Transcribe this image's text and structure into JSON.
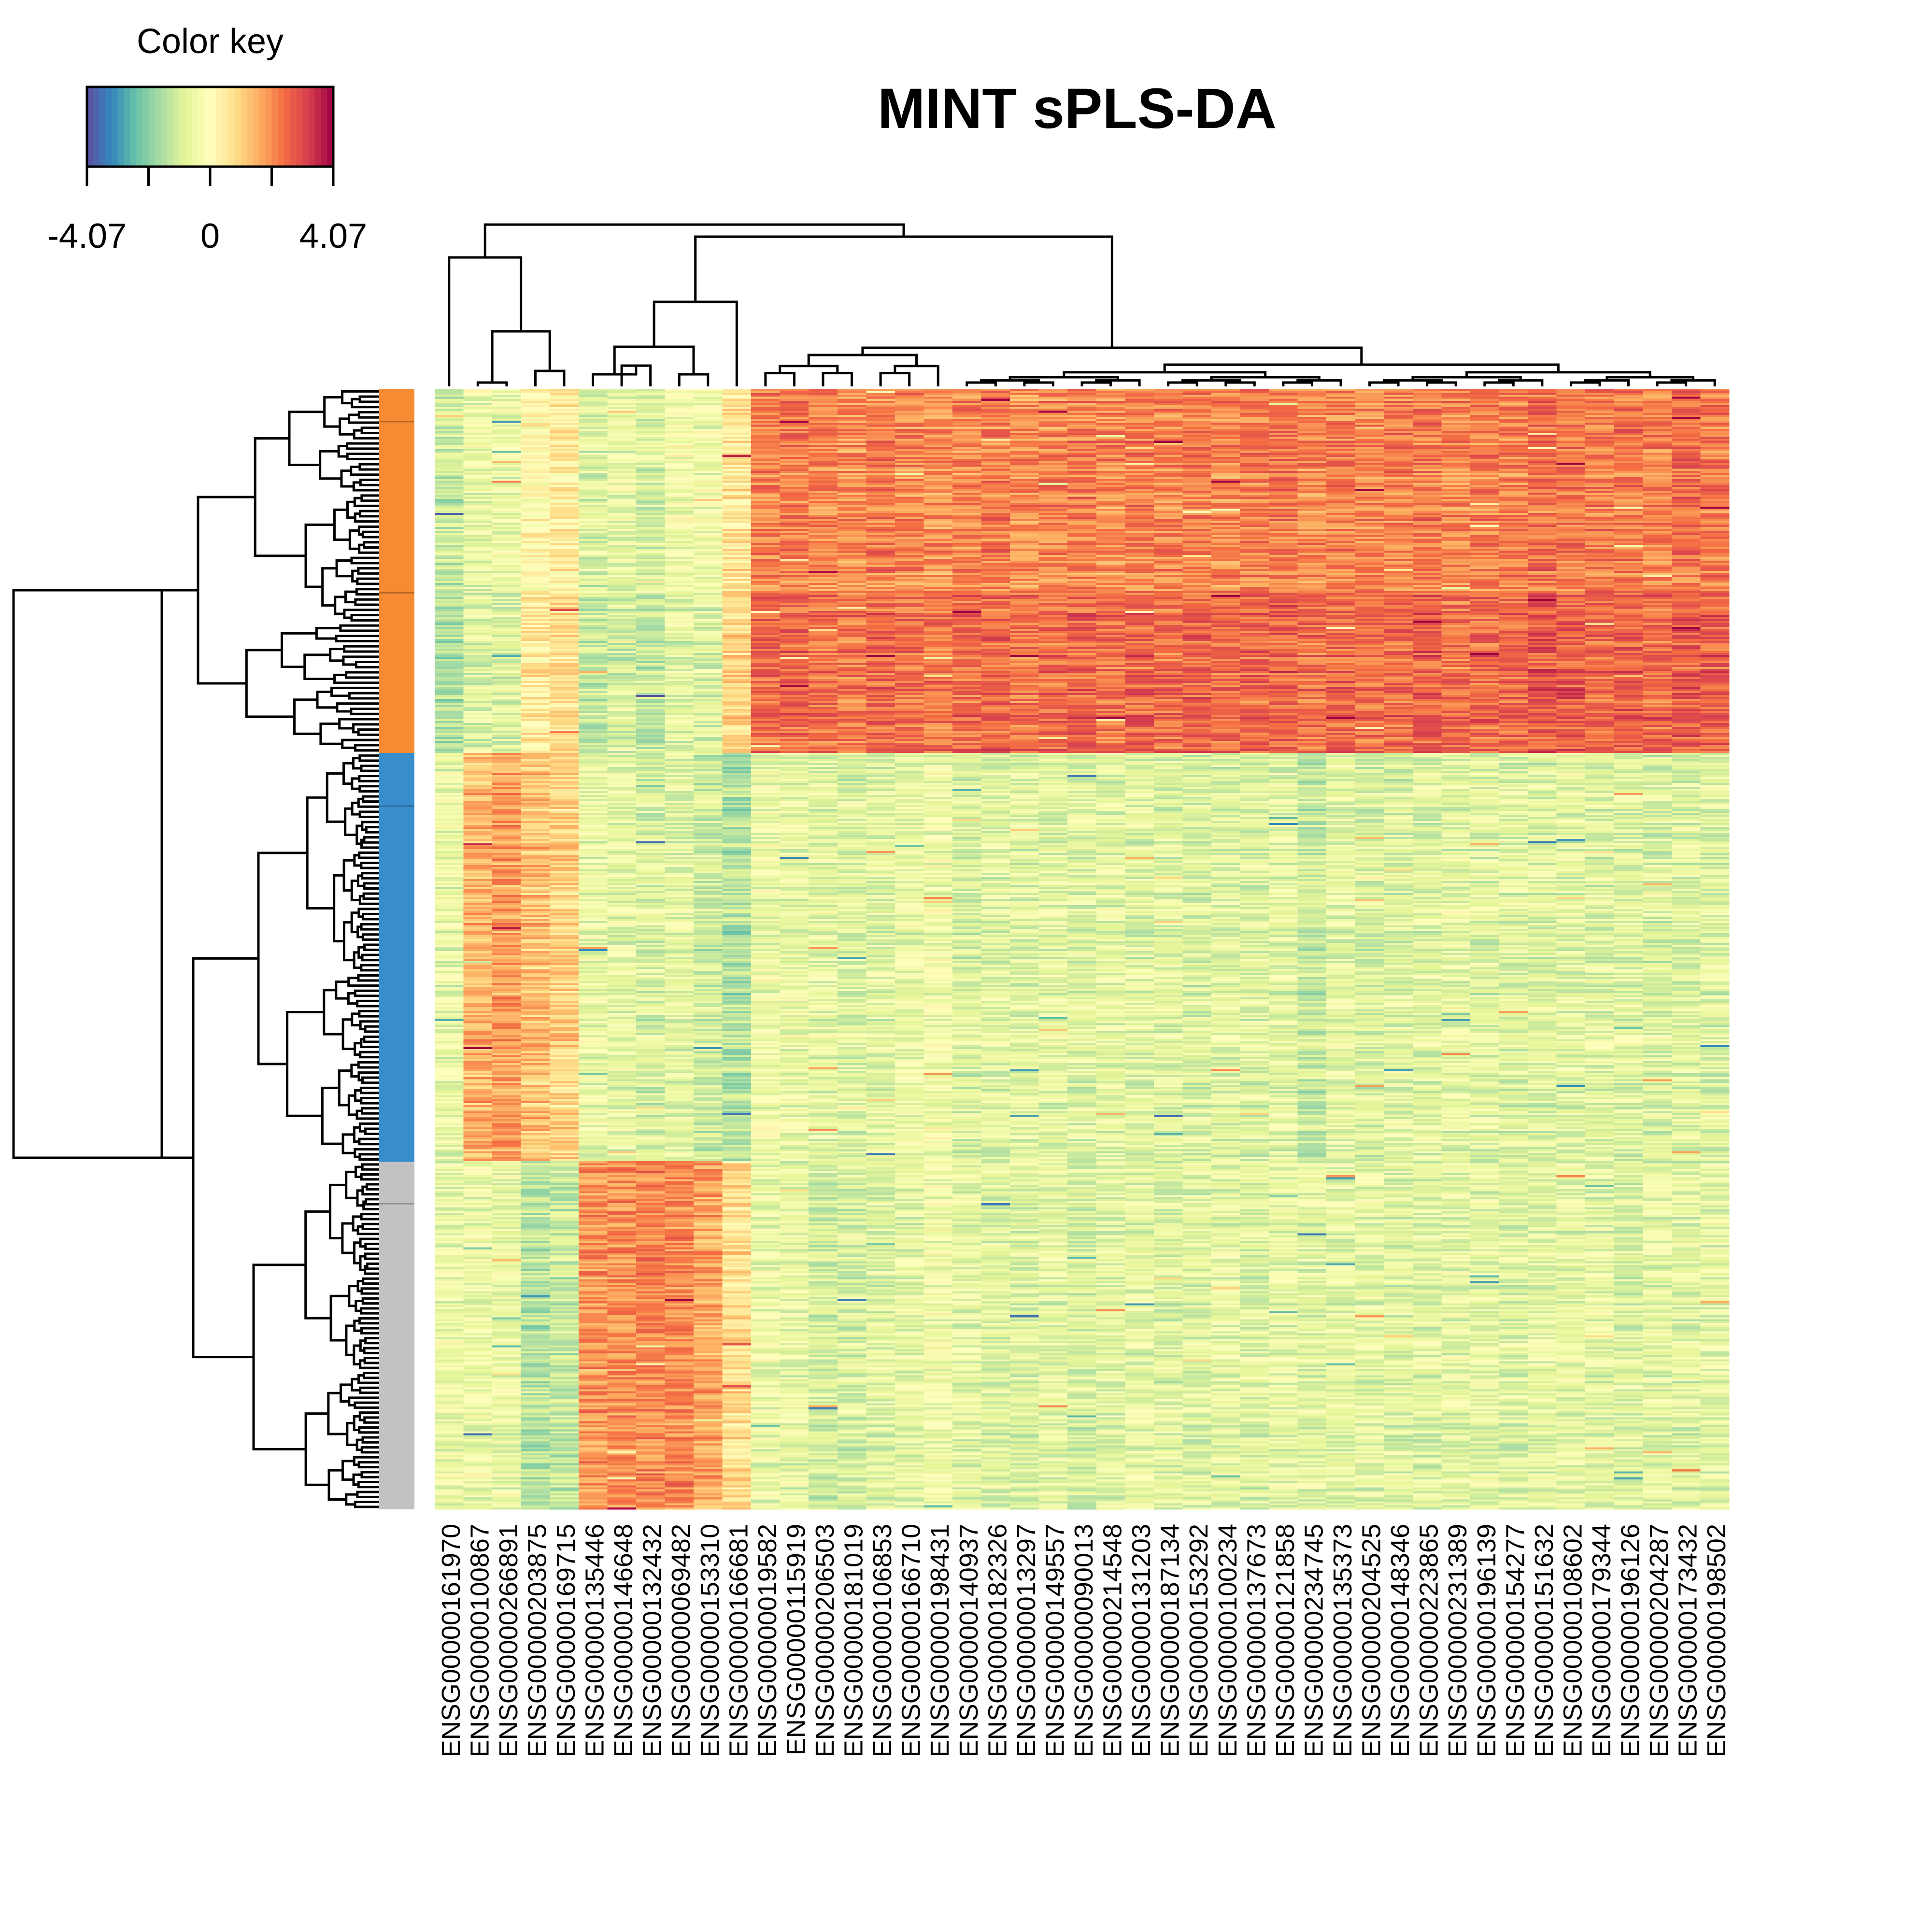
{
  "chart_data": {
    "type": "heatmap",
    "title": "MINT sPLS-DA",
    "color_key": {
      "label": "Color key",
      "min": -4.07,
      "max": 4.07,
      "tick_labels": [
        "-4.07",
        "0",
        "4.07"
      ],
      "palette": [
        "#5E4FA2",
        "#3288BD",
        "#66C2A5",
        "#ABDDA4",
        "#E6F598",
        "#FFFFBF",
        "#FEE08B",
        "#FDAE61",
        "#F46D43",
        "#D53E4F",
        "#9E0142"
      ]
    },
    "columns": [
      "ENSG00000161970",
      "ENSG00000100867",
      "ENSG00000266891",
      "ENSG00000203875",
      "ENSG00000169715",
      "ENSG00000135446",
      "ENSG00000146648",
      "ENSG00000132432",
      "ENSG00000069482",
      "ENSG00000153310",
      "ENSG00000166681",
      "ENSG00000019582",
      "ENSG00000115919",
      "ENSG00000206503",
      "ENSG00000181019",
      "ENSG00000106853",
      "ENSG00000166710",
      "ENSG00000198431",
      "ENSG00000140937",
      "ENSG00000182326",
      "ENSG00000013297",
      "ENSG00000149557",
      "ENSG00000090013",
      "ENSG00000214548",
      "ENSG00000131203",
      "ENSG00000187134",
      "ENSG00000153292",
      "ENSG00000100234",
      "ENSG00000137673",
      "ENSG00000121858",
      "ENSG00000234745",
      "ENSG00000135373",
      "ENSG00000204525",
      "ENSG00000148346",
      "ENSG00000223865",
      "ENSG00000231389",
      "ENSG00000196139",
      "ENSG00000154277",
      "ENSG00000151632",
      "ENSG00000108602",
      "ENSG00000179344",
      "ENSG00000196126",
      "ENSG00000204287",
      "ENSG00000173432",
      "ENSG00000198502"
    ],
    "row_groups": [
      {
        "color": "#F68B33",
        "fraction": 0.325,
        "subbatch_fractions": [
          0.09,
          0.56
        ]
      },
      {
        "color": "#388ECC",
        "fraction": 0.365,
        "subbatch_fractions": [
          0.13
        ]
      },
      {
        "color": "#C2C2C2",
        "fraction": 0.31,
        "subbatch_fractions": [
          0.12
        ]
      }
    ],
    "column_block_means": [
      [
        -1.2,
        -0.55,
        -0.55,
        0.15,
        0.45,
        -0.85,
        -0.6,
        -0.9,
        -0.4,
        -0.5,
        0.6,
        2.2,
        2.2,
        2.1,
        2.0,
        2.2,
        2.1,
        2.0,
        2.1,
        2.2,
        2.0,
        2.1,
        2.2,
        2.0,
        2.2,
        2.1,
        2.3,
        2.1,
        2.2,
        2.3,
        2.1,
        2.2,
        2.1,
        2.2,
        2.3,
        2.1,
        2.2,
        2.2,
        2.4,
        2.3,
        2.2,
        2.3,
        2.2,
        2.4,
        2.3
      ],
      [
        -0.6,
        1.5,
        1.8,
        1.3,
        1.0,
        -0.6,
        -0.7,
        -0.9,
        -0.7,
        -1.1,
        -1.5,
        -0.5,
        -0.6,
        -0.7,
        -0.8,
        -0.7,
        -0.6,
        -0.4,
        -0.9,
        -0.8,
        -0.8,
        -0.7,
        -0.8,
        -0.7,
        -0.8,
        -0.8,
        -0.9,
        -0.8,
        -0.8,
        -0.7,
        -1.2,
        -0.7,
        -1.0,
        -0.8,
        -0.8,
        -0.7,
        -0.8,
        -0.8,
        -0.8,
        -0.7,
        -0.8,
        -0.8,
        -0.9,
        -0.8,
        -0.8
      ],
      [
        -0.6,
        -0.5,
        -0.6,
        -1.4,
        -1.2,
        1.9,
        2.0,
        2.1,
        2.0,
        1.7,
        0.8,
        -0.6,
        -0.7,
        -1.0,
        -1.0,
        -0.8,
        -0.7,
        -0.4,
        -0.7,
        -0.8,
        -0.8,
        -0.7,
        -0.9,
        -0.7,
        -0.7,
        -0.8,
        -0.8,
        -0.7,
        -0.8,
        -0.7,
        -0.8,
        -0.7,
        -0.7,
        -0.8,
        -0.8,
        -0.7,
        -0.7,
        -0.8,
        -0.7,
        -0.7,
        -0.7,
        -0.8,
        -0.7,
        -0.8,
        -0.7
      ]
    ],
    "column_order": "leaf order of the column dendrogram",
    "row_dendrogram": true,
    "column_dendrogram": true,
    "legend": "top-left"
  }
}
